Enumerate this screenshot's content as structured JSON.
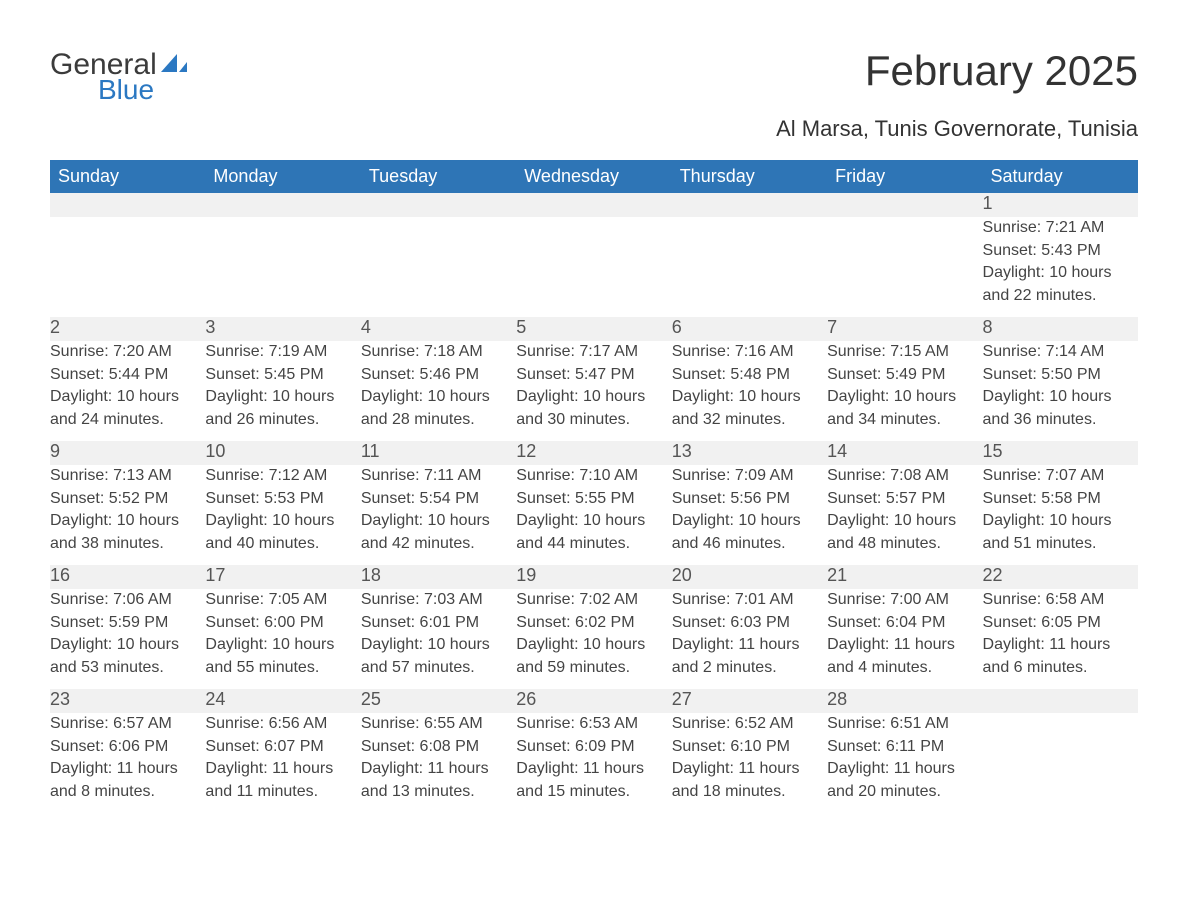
{
  "brand": {
    "name_part1": "General",
    "name_part2": "Blue",
    "text_color": "#3b3b3b",
    "accent_color": "#2b78c2"
  },
  "title": "February 2025",
  "subtitle": "Al Marsa, Tunis Governorate, Tunisia",
  "colors": {
    "header_bg": "#2e75b6",
    "header_text": "#ffffff",
    "daynum_bg": "#f1f1f1",
    "row_border": "#2e75b6",
    "body_text": "#444444",
    "page_bg": "#ffffff"
  },
  "typography": {
    "title_fontsize": 42,
    "subtitle_fontsize": 22,
    "header_fontsize": 18,
    "daynum_fontsize": 18,
    "detail_fontsize": 16,
    "font_family": "Segoe UI"
  },
  "weekdays": [
    "Sunday",
    "Monday",
    "Tuesday",
    "Wednesday",
    "Thursday",
    "Friday",
    "Saturday"
  ],
  "weeks": [
    [
      null,
      null,
      null,
      null,
      null,
      null,
      {
        "day": "1",
        "sunrise": "Sunrise: 7:21 AM",
        "sunset": "Sunset: 5:43 PM",
        "daylight1": "Daylight: 10 hours",
        "daylight2": "and 22 minutes."
      }
    ],
    [
      {
        "day": "2",
        "sunrise": "Sunrise: 7:20 AM",
        "sunset": "Sunset: 5:44 PM",
        "daylight1": "Daylight: 10 hours",
        "daylight2": "and 24 minutes."
      },
      {
        "day": "3",
        "sunrise": "Sunrise: 7:19 AM",
        "sunset": "Sunset: 5:45 PM",
        "daylight1": "Daylight: 10 hours",
        "daylight2": "and 26 minutes."
      },
      {
        "day": "4",
        "sunrise": "Sunrise: 7:18 AM",
        "sunset": "Sunset: 5:46 PM",
        "daylight1": "Daylight: 10 hours",
        "daylight2": "and 28 minutes."
      },
      {
        "day": "5",
        "sunrise": "Sunrise: 7:17 AM",
        "sunset": "Sunset: 5:47 PM",
        "daylight1": "Daylight: 10 hours",
        "daylight2": "and 30 minutes."
      },
      {
        "day": "6",
        "sunrise": "Sunrise: 7:16 AM",
        "sunset": "Sunset: 5:48 PM",
        "daylight1": "Daylight: 10 hours",
        "daylight2": "and 32 minutes."
      },
      {
        "day": "7",
        "sunrise": "Sunrise: 7:15 AM",
        "sunset": "Sunset: 5:49 PM",
        "daylight1": "Daylight: 10 hours",
        "daylight2": "and 34 minutes."
      },
      {
        "day": "8",
        "sunrise": "Sunrise: 7:14 AM",
        "sunset": "Sunset: 5:50 PM",
        "daylight1": "Daylight: 10 hours",
        "daylight2": "and 36 minutes."
      }
    ],
    [
      {
        "day": "9",
        "sunrise": "Sunrise: 7:13 AM",
        "sunset": "Sunset: 5:52 PM",
        "daylight1": "Daylight: 10 hours",
        "daylight2": "and 38 minutes."
      },
      {
        "day": "10",
        "sunrise": "Sunrise: 7:12 AM",
        "sunset": "Sunset: 5:53 PM",
        "daylight1": "Daylight: 10 hours",
        "daylight2": "and 40 minutes."
      },
      {
        "day": "11",
        "sunrise": "Sunrise: 7:11 AM",
        "sunset": "Sunset: 5:54 PM",
        "daylight1": "Daylight: 10 hours",
        "daylight2": "and 42 minutes."
      },
      {
        "day": "12",
        "sunrise": "Sunrise: 7:10 AM",
        "sunset": "Sunset: 5:55 PM",
        "daylight1": "Daylight: 10 hours",
        "daylight2": "and 44 minutes."
      },
      {
        "day": "13",
        "sunrise": "Sunrise: 7:09 AM",
        "sunset": "Sunset: 5:56 PM",
        "daylight1": "Daylight: 10 hours",
        "daylight2": "and 46 minutes."
      },
      {
        "day": "14",
        "sunrise": "Sunrise: 7:08 AM",
        "sunset": "Sunset: 5:57 PM",
        "daylight1": "Daylight: 10 hours",
        "daylight2": "and 48 minutes."
      },
      {
        "day": "15",
        "sunrise": "Sunrise: 7:07 AM",
        "sunset": "Sunset: 5:58 PM",
        "daylight1": "Daylight: 10 hours",
        "daylight2": "and 51 minutes."
      }
    ],
    [
      {
        "day": "16",
        "sunrise": "Sunrise: 7:06 AM",
        "sunset": "Sunset: 5:59 PM",
        "daylight1": "Daylight: 10 hours",
        "daylight2": "and 53 minutes."
      },
      {
        "day": "17",
        "sunrise": "Sunrise: 7:05 AM",
        "sunset": "Sunset: 6:00 PM",
        "daylight1": "Daylight: 10 hours",
        "daylight2": "and 55 minutes."
      },
      {
        "day": "18",
        "sunrise": "Sunrise: 7:03 AM",
        "sunset": "Sunset: 6:01 PM",
        "daylight1": "Daylight: 10 hours",
        "daylight2": "and 57 minutes."
      },
      {
        "day": "19",
        "sunrise": "Sunrise: 7:02 AM",
        "sunset": "Sunset: 6:02 PM",
        "daylight1": "Daylight: 10 hours",
        "daylight2": "and 59 minutes."
      },
      {
        "day": "20",
        "sunrise": "Sunrise: 7:01 AM",
        "sunset": "Sunset: 6:03 PM",
        "daylight1": "Daylight: 11 hours",
        "daylight2": "and 2 minutes."
      },
      {
        "day": "21",
        "sunrise": "Sunrise: 7:00 AM",
        "sunset": "Sunset: 6:04 PM",
        "daylight1": "Daylight: 11 hours",
        "daylight2": "and 4 minutes."
      },
      {
        "day": "22",
        "sunrise": "Sunrise: 6:58 AM",
        "sunset": "Sunset: 6:05 PM",
        "daylight1": "Daylight: 11 hours",
        "daylight2": "and 6 minutes."
      }
    ],
    [
      {
        "day": "23",
        "sunrise": "Sunrise: 6:57 AM",
        "sunset": "Sunset: 6:06 PM",
        "daylight1": "Daylight: 11 hours",
        "daylight2": "and 8 minutes."
      },
      {
        "day": "24",
        "sunrise": "Sunrise: 6:56 AM",
        "sunset": "Sunset: 6:07 PM",
        "daylight1": "Daylight: 11 hours",
        "daylight2": "and 11 minutes."
      },
      {
        "day": "25",
        "sunrise": "Sunrise: 6:55 AM",
        "sunset": "Sunset: 6:08 PM",
        "daylight1": "Daylight: 11 hours",
        "daylight2": "and 13 minutes."
      },
      {
        "day": "26",
        "sunrise": "Sunrise: 6:53 AM",
        "sunset": "Sunset: 6:09 PM",
        "daylight1": "Daylight: 11 hours",
        "daylight2": "and 15 minutes."
      },
      {
        "day": "27",
        "sunrise": "Sunrise: 6:52 AM",
        "sunset": "Sunset: 6:10 PM",
        "daylight1": "Daylight: 11 hours",
        "daylight2": "and 18 minutes."
      },
      {
        "day": "28",
        "sunrise": "Sunrise: 6:51 AM",
        "sunset": "Sunset: 6:11 PM",
        "daylight1": "Daylight: 11 hours",
        "daylight2": "and 20 minutes."
      },
      null
    ]
  ]
}
